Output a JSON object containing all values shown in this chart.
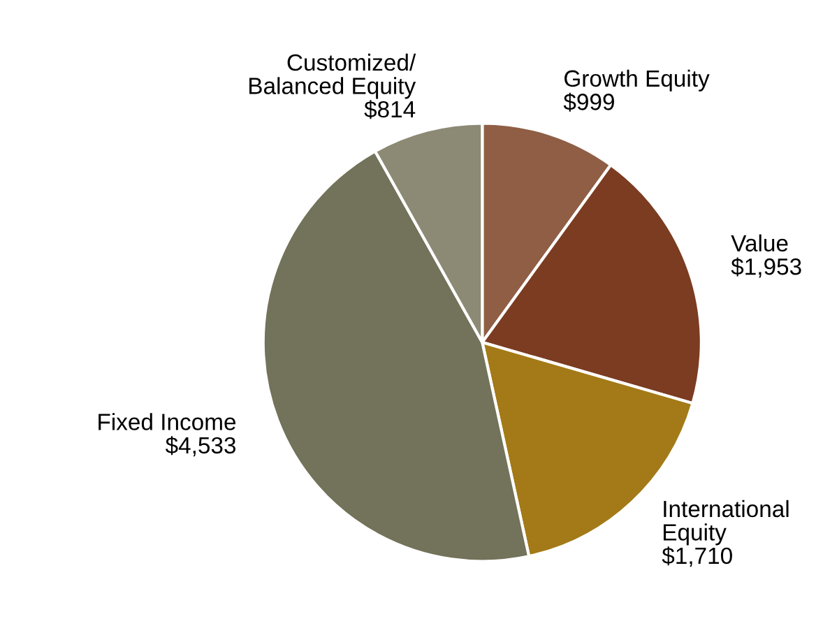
{
  "chart_data": {
    "type": "pie",
    "categories": [
      "Growth Equity",
      "Value",
      "International\nEquity",
      "Fixed Income",
      "Customized/\nBalanced Equity"
    ],
    "values": [
      999,
      1953,
      1710,
      4533,
      814
    ],
    "value_labels": [
      "$999",
      "$1,953",
      "$1,710",
      "$4,533",
      "$814"
    ],
    "colors": [
      "#8f5e45",
      "#7b3c22",
      "#a37a17",
      "#73725a",
      "#8c8a74"
    ],
    "legend": false
  }
}
